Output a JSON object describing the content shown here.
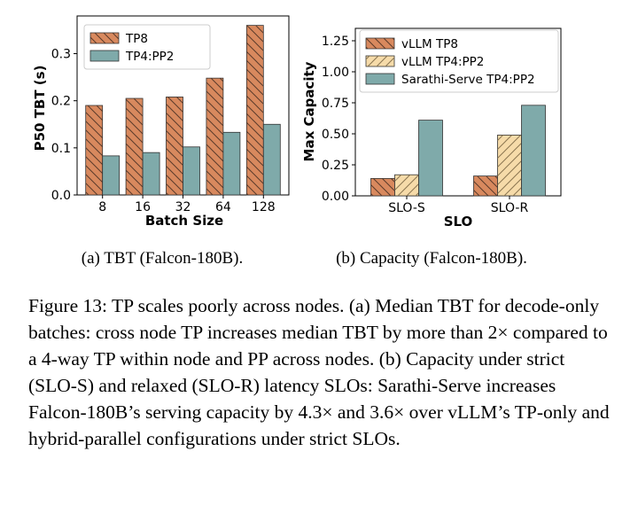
{
  "chart_data": [
    {
      "type": "bar",
      "ylabel": "P50 TBT (s)",
      "xlabel": "Batch Size",
      "categories": [
        "8",
        "16",
        "32",
        "64",
        "128"
      ],
      "ylim": [
        0,
        0.38
      ],
      "yticks": [
        "0.0",
        "0.1",
        "0.2",
        "0.3"
      ],
      "ytick_values": [
        0,
        0.1,
        0.2,
        0.3
      ],
      "legend_position": "top-left",
      "series": [
        {
          "name": "TP8",
          "values": [
            0.19,
            0.205,
            0.208,
            0.248,
            0.36
          ],
          "color": "#d8895e",
          "hatch": "backslash"
        },
        {
          "name": "TP4:PP2",
          "values": [
            0.083,
            0.09,
            0.102,
            0.133,
            0.15
          ],
          "color": "#7faaaa",
          "hatch": "none"
        }
      ],
      "subcaption": "(a) TBT (Falcon-180B)."
    },
    {
      "type": "bar",
      "ylabel": "Max Capacity",
      "xlabel": "SLO",
      "categories": [
        "SLO-S",
        "SLO-R"
      ],
      "ylim": [
        0,
        1.35
      ],
      "yticks": [
        "0.00",
        "0.25",
        "0.50",
        "0.75",
        "1.00",
        "1.25"
      ],
      "ytick_values": [
        0,
        0.25,
        0.5,
        0.75,
        1.0,
        1.25
      ],
      "legend_position": "top-left",
      "series": [
        {
          "name": "vLLM TP8",
          "values": [
            0.14,
            0.16
          ],
          "color": "#d8895e",
          "hatch": "backslash"
        },
        {
          "name": "vLLM TP4:PP2",
          "values": [
            0.17,
            0.49
          ],
          "color": "#f6dba9",
          "hatch": "slash"
        },
        {
          "name": "Sarathi-Serve TP4:PP2",
          "values": [
            0.61,
            0.73
          ],
          "color": "#7faaaa",
          "hatch": "none"
        }
      ],
      "subcaption": "(b) Capacity (Falcon-180B)."
    }
  ],
  "caption": "Figure 13: TP scales poorly across nodes. (a) Median TBT for decode-only batches: cross node TP increases median TBT by more than 2× compared to a 4-way TP within node and PP across nodes. (b) Capacity under strict (SLO-S) and relaxed (SLO-R) latency SLOs: Sarathi-Serve increases Falcon-180B’s serving capacity by 4.3× and 3.6× over vLLM’s TP-only and hybrid-parallel configurations under strict SLOs."
}
